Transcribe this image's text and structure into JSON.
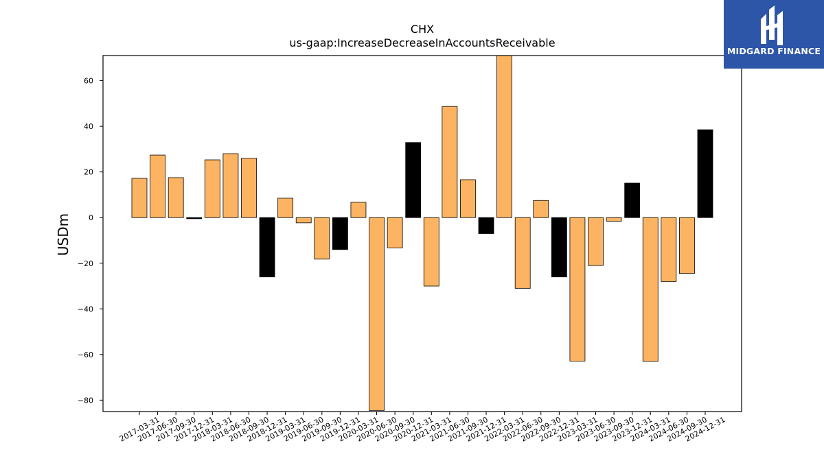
{
  "chart_data": {
    "type": "bar",
    "title": "CHX",
    "subtitle": "us-gaap:IncreaseDecreaseInAccountsReceivable",
    "xlabel": "",
    "ylabel": "USDm",
    "ylim": [
      -85,
      71
    ],
    "yticks": [
      -80,
      -60,
      -40,
      -20,
      0,
      20,
      40,
      60
    ],
    "categories": [
      "2017-03-31",
      "2017-06-30",
      "2017-09-30",
      "2017-12-31",
      "2018-03-31",
      "2018-06-30",
      "2018-09-30",
      "2018-12-31",
      "2019-03-31",
      "2019-06-30",
      "2019-09-30",
      "2019-12-31",
      "2020-03-31",
      "2020-06-30",
      "2020-09-30",
      "2020-12-31",
      "2021-03-31",
      "2021-06-30",
      "2021-09-30",
      "2021-12-31",
      "2022-03-31",
      "2022-06-30",
      "2022-09-30",
      "2022-12-31",
      "2023-03-31",
      "2023-06-30",
      "2023-09-30",
      "2023-12-31",
      "2024-03-31",
      "2024-06-30",
      "2024-09-30",
      "2024-12-31"
    ],
    "values": [
      17.2,
      27.4,
      17.5,
      -0.5,
      25.3,
      28.0,
      26.0,
      -26.0,
      8.5,
      -2.3,
      -18.2,
      -14.0,
      6.7,
      -84.5,
      -13.3,
      32.9,
      -30.0,
      48.7,
      16.6,
      -7.0,
      72.0,
      -31.0,
      7.5,
      -26.0,
      -62.9,
      -21.0,
      -1.6,
      15.1,
      -63.0,
      -28.0,
      -24.5,
      38.5
    ],
    "colors": {
      "quarter": "#fdb462",
      "year_end": "#000000",
      "edge": "#000000"
    },
    "bar_types": [
      "q",
      "q",
      "q",
      "ye",
      "q",
      "q",
      "q",
      "ye",
      "q",
      "q",
      "q",
      "ye",
      "q",
      "q",
      "q",
      "ye",
      "q",
      "q",
      "q",
      "ye",
      "q",
      "q",
      "q",
      "ye",
      "q",
      "q",
      "q",
      "ye",
      "q",
      "q",
      "q",
      "ye"
    ],
    "grid": false,
    "legend": "none"
  },
  "logo": {
    "text": "MIDGARD FINANCE",
    "background": "#2d55a8",
    "icon": "midgard-logo-icon"
  }
}
